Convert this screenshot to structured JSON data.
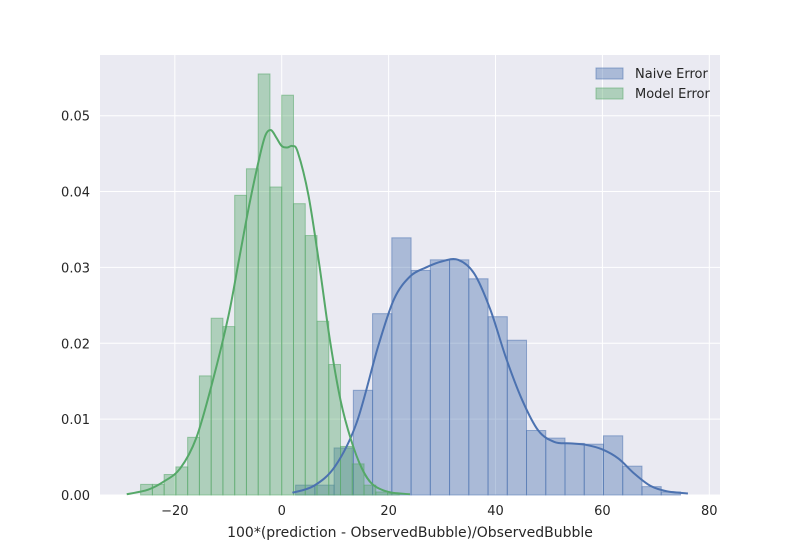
{
  "chart_data": {
    "type": "histogram-kde",
    "title": "",
    "xlabel": "100*(prediction - ObservedBubble)/ObservedBubble",
    "ylabel": "",
    "xlim": [
      -34,
      82
    ],
    "ylim": [
      0,
      0.058
    ],
    "xticks": [
      -20,
      0,
      20,
      40,
      60,
      80
    ],
    "xtick_labels": [
      "−20",
      "0",
      "20",
      "40",
      "60",
      "80"
    ],
    "yticks": [
      0,
      0.01,
      0.02,
      0.03,
      0.04,
      0.05
    ],
    "ytick_labels": [
      "0.00",
      "0.01",
      "0.02",
      "0.03",
      "0.04",
      "0.05"
    ],
    "grid": true,
    "legend_position": "top-right",
    "colors": {
      "background": "#EAEAF2",
      "grid": "#FFFFFF",
      "naive": "#4C72B0",
      "model": "#55A868"
    },
    "series": [
      {
        "name": "Naive Error",
        "color": "#4C72B0",
        "bin_edges": [
          2.6,
          6.2,
          9.8,
          13.4,
          17.0,
          20.6,
          24.2,
          27.8,
          31.4,
          35.0,
          38.6,
          42.2,
          45.8,
          49.4,
          53.0,
          56.6,
          60.2,
          63.8,
          67.4,
          71.0,
          74.6
        ],
        "density": [
          0.0013,
          0.0013,
          0.0062,
          0.0138,
          0.0239,
          0.0339,
          0.0296,
          0.031,
          0.031,
          0.0285,
          0.0235,
          0.0204,
          0.0085,
          0.0075,
          0.0068,
          0.0067,
          0.0078,
          0.0038,
          0.0011,
          0.0004
        ],
        "kde_x": [
          2,
          6,
          10,
          14,
          18,
          21,
          24,
          27,
          30,
          33,
          36,
          39,
          42,
          45,
          48,
          51,
          54,
          57,
          60,
          63,
          66,
          69,
          72,
          76
        ],
        "kde_y": [
          0.0003,
          0.0012,
          0.0038,
          0.0095,
          0.0195,
          0.0258,
          0.0288,
          0.03,
          0.0308,
          0.031,
          0.0292,
          0.0245,
          0.018,
          0.0125,
          0.0085,
          0.007,
          0.0068,
          0.0066,
          0.006,
          0.0048,
          0.0028,
          0.0012,
          0.0005,
          0.0002
        ]
      },
      {
        "name": "Model Error",
        "color": "#55A868",
        "bin_edges": [
          -26.4,
          -24.2,
          -22.0,
          -19.8,
          -17.6,
          -15.4,
          -13.2,
          -11.0,
          -8.8,
          -6.6,
          -4.4,
          -2.2,
          0.0,
          2.2,
          4.4,
          6.6,
          8.8,
          11.0,
          13.2,
          15.4,
          17.6,
          19.8,
          22.0
        ],
        "density": [
          0.0014,
          0.0014,
          0.0027,
          0.0037,
          0.0076,
          0.0157,
          0.0233,
          0.0222,
          0.0395,
          0.043,
          0.0555,
          0.0406,
          0.0527,
          0.0384,
          0.0342,
          0.0229,
          0.0172,
          0.0064,
          0.0041,
          0.0013,
          0.0004,
          0.0002
        ]
      }
    ],
    "model_kde": {
      "x": [
        -29,
        -25,
        -22,
        -19,
        -16,
        -13,
        -10,
        -8,
        -6,
        -4,
        -3,
        -2,
        -1,
        0,
        1,
        2,
        3,
        5,
        7,
        9,
        11,
        13,
        15,
        17,
        20,
        24
      ],
      "y": [
        0.0001,
        0.0007,
        0.0018,
        0.0035,
        0.0075,
        0.0148,
        0.0235,
        0.031,
        0.0385,
        0.045,
        0.0475,
        0.0481,
        0.0471,
        0.046,
        0.0458,
        0.046,
        0.0452,
        0.0395,
        0.0305,
        0.0205,
        0.0125,
        0.0072,
        0.0035,
        0.0014,
        0.0004,
        0.0001
      ]
    }
  }
}
